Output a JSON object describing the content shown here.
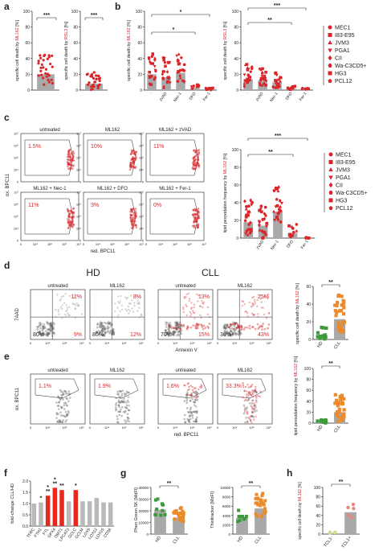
{
  "panel_letters": [
    "a",
    "b",
    "c",
    "d",
    "e",
    "f",
    "g",
    "h"
  ],
  "colors": {
    "red": "#d8262a",
    "orange": "#ec8a2b",
    "green": "#3c9a3a",
    "lightgreen": "#c6e38a",
    "pink": "#e9867f",
    "grey": "#a9a9a9",
    "bar_red": "#e8271e"
  },
  "legend_b": [
    "MEC1",
    "I83-E95",
    "JVM3",
    "PGA1",
    "CII",
    "Wa-C3CD5+",
    "HG3",
    "PCL12"
  ],
  "legend_c": [
    "MEC1",
    "I83-E95",
    "JVM3",
    "PGA1",
    "CII",
    "Wa-C3CD5+",
    "HG3",
    "PCL12"
  ],
  "hd_label": "HD",
  "cll_label": "CLL",
  "chart_data": [
    {
      "panel": "a",
      "type": "bar",
      "categories": [
        ""
      ],
      "values": [
        20
      ],
      "ylim": [
        0,
        100
      ],
      "yticks": [
        0,
        20,
        40,
        60,
        80,
        100
      ],
      "ylabel_prefix": "specific cell death by",
      "ylabel_red": "ML162",
      "ylabel_suffix": "[%]",
      "significance": "***"
    },
    {
      "panel": "a",
      "type": "bar",
      "categories": [
        ""
      ],
      "values": [
        8
      ],
      "ylim": [
        0,
        100
      ],
      "yticks": [
        0,
        20,
        40,
        60,
        80,
        100
      ],
      "ylabel_prefix": "specific cell death by",
      "ylabel_red": "RSL3",
      "ylabel_suffix": "[%]",
      "significance": "***"
    },
    {
      "panel": "b",
      "type": "bar",
      "categories": [
        "-",
        "zVAD",
        "Nec-1",
        "DFO",
        "Fer-1"
      ],
      "values": [
        20,
        16,
        22,
        3,
        1
      ],
      "ylim": [
        0,
        100
      ],
      "yticks": [
        0,
        20,
        40,
        60,
        80,
        100
      ],
      "ylabel_prefix": "specific cell death by",
      "ylabel_red": "ML162",
      "ylabel_suffix": "[%]",
      "significance": [
        "*",
        "*"
      ]
    },
    {
      "panel": "b",
      "type": "bar",
      "categories": [
        "-",
        "zVAD",
        "Nec-1",
        "DFO",
        "Fer-1"
      ],
      "values": [
        14,
        12,
        10,
        2,
        1
      ],
      "ylim": [
        0,
        100
      ],
      "yticks": [
        0,
        20,
        40,
        60,
        80,
        100
      ],
      "ylabel_prefix": "specific cell death by",
      "ylabel_red": "RSL3",
      "ylabel_suffix": "[%]",
      "significance": [
        "***",
        "**"
      ]
    },
    {
      "panel": "c",
      "type": "bar",
      "categories": [
        "-",
        "zVAD",
        "Nec-1",
        "DFO",
        "Fer-1"
      ],
      "values": [
        18,
        14,
        30,
        6,
        0
      ],
      "ylim": [
        0,
        100
      ],
      "yticks": [
        0,
        20,
        40,
        60,
        80,
        100
      ],
      "ylabel_prefix": "lipid peroxidation frequency by",
      "ylabel_red": "ML162",
      "ylabel_suffix": "[%]",
      "significance": [
        "***",
        "**"
      ]
    },
    {
      "panel": "c",
      "type": "scatter",
      "title": "flow cytometry plots",
      "plots": [
        {
          "label": "untreated",
          "pct": "1.5%"
        },
        {
          "label": "ML162",
          "pct": "10%"
        },
        {
          "label": "ML162 + zVAD",
          "pct": "11%"
        },
        {
          "label": "ML162 + Nec-1",
          "pct": "11%"
        },
        {
          "label": "ML162 + DFO",
          "pct": "3%"
        },
        {
          "label": "ML162 + Fer-1",
          "pct": "0%"
        }
      ],
      "xlabel": "red. BPC11",
      "ylabel": "ox. BPC11",
      "ticks": [
        "0",
        "10⁴",
        "10⁵",
        "10⁶",
        "10⁷"
      ]
    },
    {
      "panel": "d",
      "type": "scatter",
      "xlabel": "Annexin V",
      "ylabel": "7AAD",
      "plots": [
        {
          "group": "HD",
          "label": "untreated",
          "q": [
            "11%",
            "80%",
            "9%"
          ]
        },
        {
          "group": "HD",
          "label": "ML162",
          "q": [
            "8%",
            "80%",
            "12%"
          ]
        },
        {
          "group": "CLL",
          "label": "untreated",
          "q": [
            "13%",
            "70%",
            "15%"
          ]
        },
        {
          "group": "CLL",
          "label": "ML162",
          "q": [
            "25%",
            "30%",
            "43%"
          ]
        }
      ],
      "ticks": [
        "0",
        "10⁴",
        "10⁵",
        "10⁶"
      ]
    },
    {
      "panel": "d",
      "type": "bar",
      "categories": [
        "HD",
        "CLL"
      ],
      "values": [
        5,
        23
      ],
      "ylim": [
        0,
        60
      ],
      "yticks": [
        0,
        20,
        40,
        60
      ],
      "ylabel_prefix": "specific cell death by",
      "ylabel_red": "ML162",
      "ylabel_suffix": "[%]",
      "significance": "**"
    },
    {
      "panel": "e",
      "type": "scatter",
      "xlabel": "red. BPC11",
      "ylabel": "ox. BPC11",
      "plots": [
        {
          "label": "untreated",
          "pct": "1.1%"
        },
        {
          "label": "ML162",
          "pct": "1.9%"
        },
        {
          "label": "untreated",
          "pct": "1.6%"
        },
        {
          "label": "ML162",
          "pct": "33.3%"
        }
      ],
      "ticks": [
        "0",
        "10⁴",
        "10⁵",
        "10⁶"
      ]
    },
    {
      "panel": "e",
      "type": "bar",
      "categories": [
        "HD",
        "CLL"
      ],
      "values": [
        2,
        20
      ],
      "ylim": [
        0,
        100
      ],
      "yticks": [
        0,
        20,
        40,
        60,
        80,
        100
      ],
      "ylabel_prefix": "lipid peroxidation frequency by",
      "ylabel_red": "ML162",
      "ylabel_suffix": "[%]",
      "significance": "**"
    },
    {
      "panel": "f",
      "type": "bar",
      "categories": [
        "TFRC",
        "FTH1",
        "FTL",
        "GPX4",
        "DMT1",
        "LPCAT3",
        "GCLC",
        "GCLM",
        "LOX5",
        "LOX12",
        "LOX15",
        "CD36"
      ],
      "values": [
        1.0,
        1.05,
        1.35,
        1.7,
        1.6,
        1.1,
        1.6,
        1.1,
        1.1,
        1.25,
        1.05,
        1.05
      ],
      "colors": [
        "grey",
        "grey",
        "red",
        "red",
        "red",
        "grey",
        "red",
        "grey",
        "grey",
        "grey",
        "grey",
        "grey"
      ],
      "ylim": [
        0.0,
        2.0
      ],
      "yticks": [
        "0.0",
        "0.5",
        "1.0",
        "1.5",
        "2.0"
      ],
      "ylabel": "fold-change CLL/HD",
      "significance": [
        {
          "cat": 1,
          "label": "*"
        },
        {
          "cat": 2,
          "label": "*\n**"
        },
        {
          "cat": 3,
          "label": "*\n**"
        },
        {
          "cat": 4,
          "label": "**"
        },
        {
          "cat": 6,
          "label": "*"
        }
      ]
    },
    {
      "panel": "g",
      "type": "bar",
      "categories": [
        "HD",
        "CLL"
      ],
      "values": [
        21000,
        14000
      ],
      "ylim": [
        0,
        40000
      ],
      "yticks": [
        0,
        10000,
        20000,
        30000,
        40000
      ],
      "ylabel": "Phen Green SK [MdFI]",
      "significance": "**"
    },
    {
      "panel": "g",
      "type": "bar",
      "categories": [
        "HD",
        "CLL"
      ],
      "values": [
        3500,
        5500
      ],
      "ylim": [
        0,
        10000
      ],
      "yticks": [
        0,
        2000,
        4000,
        6000,
        8000,
        10000
      ],
      "ylabel": "Thioltracker [MdFI]",
      "significance": "**"
    },
    {
      "panel": "h",
      "type": "bar",
      "categories": [
        "TCL1-",
        "TCL1+"
      ],
      "values": [
        2,
        47
      ],
      "ylim": [
        0,
        100
      ],
      "yticks": [
        0,
        20,
        40,
        60,
        80,
        100
      ],
      "ylabel_prefix": "specific cell death",
      "ylabel_red": "ML162",
      "ylabel_middle": "by",
      "ylabel_suffix": "[%]",
      "significance": "**"
    }
  ]
}
